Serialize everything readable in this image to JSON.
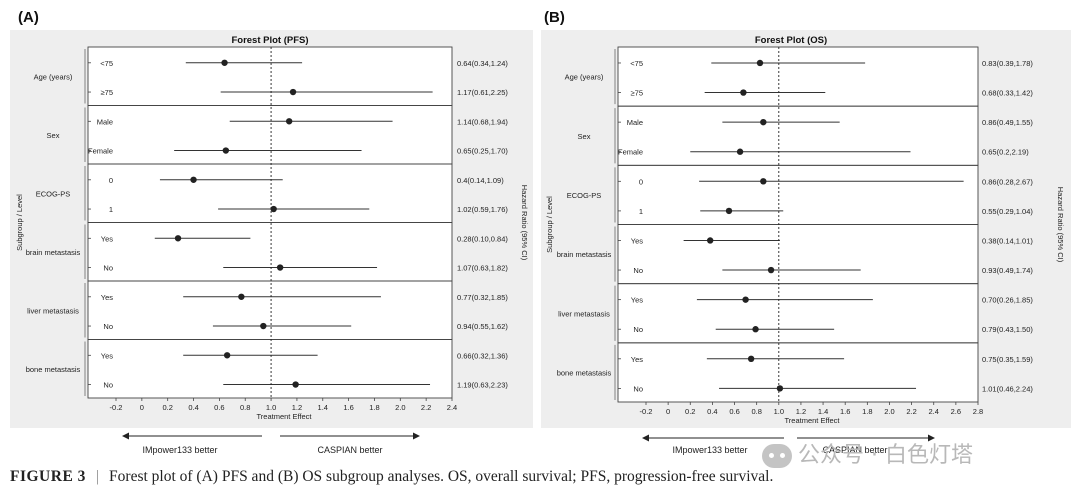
{
  "figure": {
    "caption_label": "FIGURE 3",
    "caption_separator": "|",
    "caption_text": "Forest plot of (A) PFS and (B) OS subgroup analyses. OS, overall survival; PFS, progression-free survival.",
    "watermark": "公众号 · 白色灯塔"
  },
  "colors": {
    "panel_bg": "#eeeeee",
    "plot_bg": "#ffffff",
    "marker": "#222222",
    "line": "#333333"
  },
  "chart_data": [
    {
      "type": "forest",
      "panel_label": "(A)",
      "title": "Forest Plot (PFS)",
      "xlabel": "Treatment Effect",
      "ylabel": "Subgroup / Level",
      "right_label": "Hazard Ratio (95% CI)",
      "xlim": [
        -0.2,
        2.4
      ],
      "x_ticks": [
        -0.2,
        0,
        0.2,
        0.4,
        0.6,
        0.8,
        1,
        1.2,
        1.4,
        1.6,
        1.8,
        2,
        2.2,
        2.4
      ],
      "x_tick_labels": [
        "-0.2",
        "0",
        "0.2",
        "0.4",
        "0.6",
        "0.8",
        "1.0",
        "1.2",
        "1.4",
        "1.6",
        "1.8",
        "2.0",
        "2.2",
        "2.4"
      ],
      "reference_line": 1,
      "arrow_left_label": "IMpower133 better",
      "arrow_right_label": "CASPIAN better",
      "groups": [
        {
          "name": "Age (years)",
          "rows": [
            {
              "level": "<75",
              "hr": 0.64,
              "lo": 0.34,
              "hi": 1.24,
              "label": "0.64(0.34,1.24)"
            },
            {
              "level": "≥75",
              "hr": 1.17,
              "lo": 0.61,
              "hi": 2.25,
              "label": "1.17(0.61,2.25)"
            }
          ]
        },
        {
          "name": "Sex",
          "rows": [
            {
              "level": "Male",
              "hr": 1.14,
              "lo": 0.68,
              "hi": 1.94,
              "label": "1.14(0.68,1.94)"
            },
            {
              "level": "Female",
              "hr": 0.65,
              "lo": 0.25,
              "hi": 1.7,
              "label": "0.65(0.25,1.70)"
            }
          ]
        },
        {
          "name": "ECOG-PS",
          "rows": [
            {
              "level": "0",
              "hr": 0.4,
              "lo": 0.14,
              "hi": 1.09,
              "label": "0.4(0.14,1.09)"
            },
            {
              "level": "1",
              "hr": 1.02,
              "lo": 0.59,
              "hi": 1.76,
              "label": "1.02(0.59,1.76)"
            }
          ]
        },
        {
          "name": "brain metastasis",
          "rows": [
            {
              "level": "Yes",
              "hr": 0.28,
              "lo": 0.1,
              "hi": 0.84,
              "label": "0.28(0.10,0.84)"
            },
            {
              "level": "No",
              "hr": 1.07,
              "lo": 0.63,
              "hi": 1.82,
              "label": "1.07(0.63,1.82)"
            }
          ]
        },
        {
          "name": "liver metastasis",
          "rows": [
            {
              "level": "Yes",
              "hr": 0.77,
              "lo": 0.32,
              "hi": 1.85,
              "label": "0.77(0.32,1.85)"
            },
            {
              "level": "No",
              "hr": 0.94,
              "lo": 0.55,
              "hi": 1.62,
              "label": "0.94(0.55,1.62)"
            }
          ]
        },
        {
          "name": "bone metastasis",
          "rows": [
            {
              "level": "Yes",
              "hr": 0.66,
              "lo": 0.32,
              "hi": 1.36,
              "label": "0.66(0.32,1.36)"
            },
            {
              "level": "No",
              "hr": 1.19,
              "lo": 0.63,
              "hi": 2.23,
              "label": "1.19(0.63,2.23)"
            }
          ]
        }
      ]
    },
    {
      "type": "forest",
      "panel_label": "(B)",
      "title": "Forest Plot (OS)",
      "xlabel": "Treatment Effect",
      "ylabel": "Subgroup / Level",
      "right_label": "Hazard Ratio (95% CI)",
      "xlim": [
        -0.2,
        2.8
      ],
      "x_ticks": [
        -0.2,
        0,
        0.2,
        0.4,
        0.6,
        0.8,
        1,
        1.2,
        1.4,
        1.6,
        1.8,
        2,
        2.2,
        2.4,
        2.6,
        2.8
      ],
      "x_tick_labels": [
        "-0.2",
        "0",
        "0.2",
        "0.4",
        "0.6",
        "0.8",
        "1.0",
        "1.2",
        "1.4",
        "1.6",
        "1.8",
        "2.0",
        "2.2",
        "2.4",
        "2.6",
        "2.8"
      ],
      "reference_line": 1,
      "arrow_left_label": "IMpower133 better",
      "arrow_right_label": "CASPIAN better",
      "groups": [
        {
          "name": "Age (years)",
          "rows": [
            {
              "level": "<75",
              "hr": 0.83,
              "lo": 0.39,
              "hi": 1.78,
              "label": "0.83(0.39,1.78)"
            },
            {
              "level": "≥75",
              "hr": 0.68,
              "lo": 0.33,
              "hi": 1.42,
              "label": "0.68(0.33,1.42)"
            }
          ]
        },
        {
          "name": "Sex",
          "rows": [
            {
              "level": "Male",
              "hr": 0.86,
              "lo": 0.49,
              "hi": 1.55,
              "label": "0.86(0.49,1.55)"
            },
            {
              "level": "Female",
              "hr": 0.65,
              "lo": 0.2,
              "hi": 2.19,
              "label": "0.65(0.2,2.19)"
            }
          ]
        },
        {
          "name": "ECOG-PS",
          "rows": [
            {
              "level": "0",
              "hr": 0.86,
              "lo": 0.28,
              "hi": 2.67,
              "label": "0.86(0.28,2.67)"
            },
            {
              "level": "1",
              "hr": 0.55,
              "lo": 0.29,
              "hi": 1.04,
              "label": "0.55(0.29,1.04)"
            }
          ]
        },
        {
          "name": "brain metastasis",
          "rows": [
            {
              "level": "Yes",
              "hr": 0.38,
              "lo": 0.14,
              "hi": 1.01,
              "label": "0.38(0.14,1.01)"
            },
            {
              "level": "No",
              "hr": 0.93,
              "lo": 0.49,
              "hi": 1.74,
              "label": "0.93(0.49,1.74)"
            }
          ]
        },
        {
          "name": "liver metastasis",
          "rows": [
            {
              "level": "Yes",
              "hr": 0.7,
              "lo": 0.26,
              "hi": 1.85,
              "label": "0.70(0.26,1.85)"
            },
            {
              "level": "No",
              "hr": 0.79,
              "lo": 0.43,
              "hi": 1.5,
              "label": "0.79(0.43,1.50)"
            }
          ]
        },
        {
          "name": "bone metastasis",
          "rows": [
            {
              "level": "Yes",
              "hr": 0.75,
              "lo": 0.35,
              "hi": 1.59,
              "label": "0.75(0.35,1.59)"
            },
            {
              "level": "No",
              "hr": 1.01,
              "lo": 0.46,
              "hi": 2.24,
              "label": "1.01(0.46,2.24)"
            }
          ]
        }
      ]
    }
  ]
}
